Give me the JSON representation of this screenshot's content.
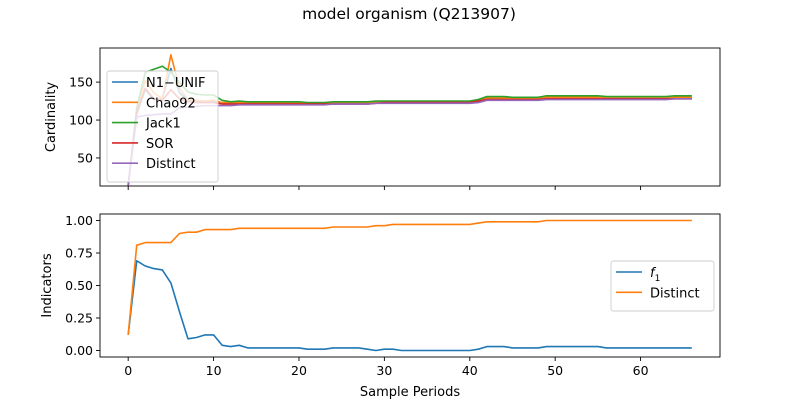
{
  "figure": {
    "title": "model organism (Q213907)"
  },
  "chart_data": [
    {
      "type": "line",
      "ylabel": "Cardinality",
      "xlabel": "",
      "xlim": [
        -3.3,
        69.3
      ],
      "ylim": [
        13,
        195
      ],
      "x_ticks": [
        0,
        10,
        20,
        30,
        40,
        50,
        60
      ],
      "x_tick_labels_shown": false,
      "y_ticks": [
        50,
        100,
        150
      ],
      "y_tick_labels": [
        "50",
        "100",
        "150"
      ],
      "legend": "upper left",
      "series": [
        {
          "name": "N1−UNIF",
          "color": "#1f77b4",
          "x": [
            0,
            1,
            2,
            3,
            4,
            5,
            6,
            7,
            8,
            9,
            10,
            11,
            12,
            13,
            14,
            15,
            16,
            17,
            18,
            19,
            20,
            21,
            22,
            23,
            24,
            25,
            26,
            27,
            28,
            29,
            30,
            31,
            32,
            33,
            34,
            35,
            36,
            37,
            38,
            39,
            40,
            41,
            42,
            43,
            44,
            45,
            46,
            47,
            48,
            49,
            50,
            51,
            52,
            53,
            54,
            55,
            56,
            57,
            58,
            59,
            60,
            61,
            62,
            63,
            64,
            65,
            66
          ],
          "values": [
            14,
            108,
            140,
            127,
            128,
            168,
            136,
            126,
            125,
            124,
            125,
            122,
            122,
            122,
            122,
            122,
            122,
            122,
            122,
            122,
            122,
            121,
            121,
            121,
            122,
            122,
            122,
            122,
            122,
            123,
            124,
            124,
            124,
            124,
            124,
            124,
            124,
            124,
            124,
            124,
            124,
            125,
            128,
            128,
            128,
            127,
            127,
            127,
            127,
            128,
            128,
            128,
            128,
            128,
            128,
            128,
            128,
            128,
            128,
            128,
            128,
            128,
            128,
            128,
            129,
            129,
            129
          ]
        },
        {
          "name": "Chao92",
          "color": "#ff7f0e",
          "x": [
            0,
            1,
            2,
            3,
            4,
            5,
            6,
            7,
            8,
            9,
            10,
            11,
            12,
            13,
            14,
            15,
            16,
            17,
            18,
            19,
            20,
            21,
            22,
            23,
            24,
            25,
            26,
            27,
            28,
            29,
            30,
            31,
            32,
            33,
            34,
            35,
            36,
            37,
            38,
            39,
            40,
            41,
            42,
            43,
            44,
            45,
            46,
            47,
            48,
            49,
            50,
            51,
            52,
            53,
            54,
            55,
            56,
            57,
            58,
            59,
            60,
            61,
            62,
            63,
            64,
            65,
            66
          ],
          "values": [
            14,
            113,
            152,
            136,
            128,
            186,
            142,
            127,
            126,
            125,
            126,
            123,
            123,
            123,
            123,
            123,
            123,
            123,
            123,
            123,
            123,
            122,
            122,
            122,
            123,
            123,
            123,
            123,
            123,
            124,
            124,
            124,
            124,
            124,
            124,
            124,
            124,
            124,
            124,
            124,
            124,
            126,
            129,
            129,
            129,
            128,
            128,
            128,
            128,
            130,
            130,
            130,
            130,
            130,
            130,
            130,
            129,
            129,
            129,
            129,
            129,
            129,
            129,
            129,
            130,
            130,
            130
          ]
        },
        {
          "name": "Jack1",
          "color": "#2ca02c",
          "x": [
            0,
            1,
            2,
            3,
            4,
            5,
            6,
            7,
            8,
            9,
            10,
            11,
            12,
            13,
            14,
            15,
            16,
            17,
            18,
            19,
            20,
            21,
            22,
            23,
            24,
            25,
            26,
            27,
            28,
            29,
            30,
            31,
            32,
            33,
            34,
            35,
            36,
            37,
            38,
            39,
            40,
            41,
            42,
            43,
            44,
            45,
            46,
            47,
            48,
            49,
            50,
            51,
            52,
            53,
            54,
            55,
            56,
            57,
            58,
            59,
            60,
            61,
            62,
            63,
            64,
            65,
            66
          ],
          "values": [
            14,
            116,
            163,
            167,
            171,
            163,
            150,
            137,
            134,
            133,
            133,
            126,
            124,
            125,
            124,
            124,
            124,
            124,
            124,
            124,
            124,
            123,
            123,
            123,
            124,
            124,
            124,
            124,
            124,
            125,
            125,
            125,
            125,
            125,
            125,
            125,
            125,
            125,
            125,
            125,
            125,
            127,
            131,
            131,
            131,
            130,
            130,
            130,
            130,
            132,
            132,
            132,
            132,
            132,
            132,
            132,
            131,
            131,
            131,
            131,
            131,
            131,
            131,
            131,
            132,
            132,
            132
          ]
        },
        {
          "name": "SOR",
          "color": "#d62728",
          "x": [
            0,
            1,
            2,
            3,
            4,
            5,
            6,
            7,
            8,
            9,
            10,
            11,
            12,
            13,
            14,
            15,
            16,
            17,
            18,
            19,
            20,
            21,
            22,
            23,
            24,
            25,
            26,
            27,
            28,
            29,
            30,
            31,
            32,
            33,
            34,
            35,
            36,
            37,
            38,
            39,
            40,
            41,
            42,
            43,
            44,
            45,
            46,
            47,
            48,
            49,
            50,
            51,
            52,
            53,
            54,
            55,
            56,
            57,
            58,
            59,
            60,
            61,
            62,
            63,
            64,
            65,
            66
          ],
          "values": [
            14,
            110,
            142,
            128,
            126,
            140,
            128,
            124,
            123,
            123,
            123,
            121,
            121,
            121,
            121,
            121,
            121,
            121,
            121,
            121,
            121,
            121,
            121,
            121,
            121,
            121,
            121,
            121,
            121,
            122,
            123,
            123,
            123,
            123,
            123,
            123,
            123,
            123,
            123,
            123,
            123,
            125,
            127,
            127,
            127,
            127,
            127,
            127,
            127,
            128,
            128,
            128,
            128,
            128,
            128,
            128,
            128,
            128,
            128,
            128,
            128,
            128,
            128,
            128,
            128,
            128,
            128
          ]
        },
        {
          "name": "Distinct",
          "color": "#9467bd",
          "x": [
            0,
            1,
            2,
            3,
            4,
            5,
            6,
            7,
            8,
            9,
            10,
            11,
            12,
            13,
            14,
            15,
            16,
            17,
            18,
            19,
            20,
            21,
            22,
            23,
            24,
            25,
            26,
            27,
            28,
            29,
            30,
            31,
            32,
            33,
            34,
            35,
            36,
            37,
            38,
            39,
            40,
            41,
            42,
            43,
            44,
            45,
            46,
            47,
            48,
            49,
            50,
            51,
            52,
            53,
            54,
            55,
            56,
            57,
            58,
            59,
            60,
            61,
            62,
            63,
            64,
            65,
            66
          ],
          "values": [
            14,
            104,
            106,
            107,
            108,
            108,
            116,
            117,
            118,
            119,
            119,
            119,
            119,
            120,
            120,
            120,
            120,
            120,
            120,
            120,
            120,
            120,
            120,
            120,
            121,
            121,
            121,
            121,
            121,
            122,
            122,
            122,
            122,
            122,
            122,
            122,
            122,
            122,
            122,
            122,
            122,
            123,
            126,
            126,
            126,
            126,
            126,
            126,
            126,
            127,
            127,
            127,
            127,
            127,
            127,
            127,
            127,
            127,
            127,
            127,
            127,
            127,
            127,
            127,
            128,
            128,
            128
          ]
        }
      ]
    },
    {
      "type": "line",
      "ylabel": "Indicators",
      "xlabel": "Sample Periods",
      "xlim": [
        -3.3,
        69.3
      ],
      "ylim": [
        -0.05,
        1.05
      ],
      "x_ticks": [
        0,
        10,
        20,
        30,
        40,
        50,
        60
      ],
      "x_tick_labels": [
        "0",
        "10",
        "20",
        "30",
        "40",
        "50",
        "60"
      ],
      "y_ticks": [
        0.0,
        0.25,
        0.5,
        0.75,
        1.0
      ],
      "y_tick_labels": [
        "0.00",
        "0.25",
        "0.50",
        "0.75",
        "1.00"
      ],
      "legend": "center right",
      "series": [
        {
          "name": "f1",
          "name_base": "f",
          "name_sub": "1",
          "color": "#1f77b4",
          "x": [
            0,
            1,
            2,
            3,
            4,
            5,
            6,
            7,
            8,
            9,
            10,
            11,
            12,
            13,
            14,
            15,
            16,
            17,
            18,
            19,
            20,
            21,
            22,
            23,
            24,
            25,
            26,
            27,
            28,
            29,
            30,
            31,
            32,
            33,
            34,
            35,
            36,
            37,
            38,
            39,
            40,
            41,
            42,
            43,
            44,
            45,
            46,
            47,
            48,
            49,
            50,
            51,
            52,
            53,
            54,
            55,
            56,
            57,
            58,
            59,
            60,
            61,
            62,
            63,
            64,
            65,
            66
          ],
          "values": [
            0.12,
            0.69,
            0.65,
            0.63,
            0.62,
            0.52,
            0.3,
            0.09,
            0.1,
            0.12,
            0.12,
            0.04,
            0.03,
            0.04,
            0.02,
            0.02,
            0.02,
            0.02,
            0.02,
            0.02,
            0.02,
            0.01,
            0.01,
            0.01,
            0.02,
            0.02,
            0.02,
            0.02,
            0.01,
            0.0,
            0.01,
            0.01,
            0.0,
            0.0,
            0.0,
            0.0,
            0.0,
            0.0,
            0.0,
            0.0,
            0.0,
            0.01,
            0.03,
            0.03,
            0.03,
            0.02,
            0.02,
            0.02,
            0.02,
            0.03,
            0.03,
            0.03,
            0.03,
            0.03,
            0.03,
            0.03,
            0.02,
            0.02,
            0.02,
            0.02,
            0.02,
            0.02,
            0.02,
            0.02,
            0.02,
            0.02,
            0.02
          ]
        },
        {
          "name": "Distinct",
          "color": "#ff7f0e",
          "x": [
            0,
            1,
            2,
            3,
            4,
            5,
            6,
            7,
            8,
            9,
            10,
            11,
            12,
            13,
            14,
            15,
            16,
            17,
            18,
            19,
            20,
            21,
            22,
            23,
            24,
            25,
            26,
            27,
            28,
            29,
            30,
            31,
            32,
            33,
            34,
            35,
            36,
            37,
            38,
            39,
            40,
            41,
            42,
            43,
            44,
            45,
            46,
            47,
            48,
            49,
            50,
            51,
            52,
            53,
            54,
            55,
            56,
            57,
            58,
            59,
            60,
            61,
            62,
            63,
            64,
            65,
            66
          ],
          "values": [
            0.12,
            0.81,
            0.83,
            0.83,
            0.83,
            0.83,
            0.9,
            0.91,
            0.91,
            0.93,
            0.93,
            0.93,
            0.93,
            0.94,
            0.94,
            0.94,
            0.94,
            0.94,
            0.94,
            0.94,
            0.94,
            0.94,
            0.94,
            0.94,
            0.95,
            0.95,
            0.95,
            0.95,
            0.95,
            0.96,
            0.96,
            0.97,
            0.97,
            0.97,
            0.97,
            0.97,
            0.97,
            0.97,
            0.97,
            0.97,
            0.97,
            0.98,
            0.99,
            0.99,
            0.99,
            0.99,
            0.99,
            0.99,
            0.99,
            1.0,
            1.0,
            1.0,
            1.0,
            1.0,
            1.0,
            1.0,
            1.0,
            1.0,
            1.0,
            1.0,
            1.0,
            1.0,
            1.0,
            1.0,
            1.0,
            1.0,
            1.0
          ]
        }
      ]
    }
  ]
}
